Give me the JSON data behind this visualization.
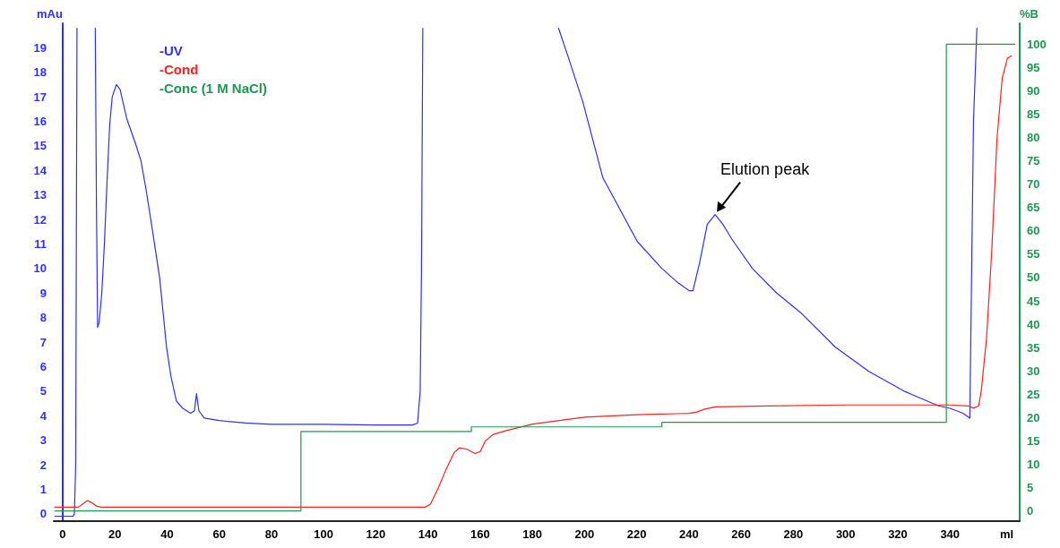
{
  "chart_data": {
    "type": "line",
    "ylabel": "mAu",
    "y2label": "%B",
    "xlabel": "ml",
    "xlim": [
      -3.4,
      366.7
    ],
    "xticks": [
      0,
      20,
      40,
      60,
      80,
      100,
      120,
      140,
      160,
      180,
      200,
      220,
      240,
      260,
      280,
      300,
      320,
      340
    ],
    "ylim": [
      -0.3,
      20
    ],
    "yticks": [
      0,
      1,
      2,
      3,
      4,
      5,
      6,
      7,
      8,
      9,
      10,
      11,
      12,
      13,
      14,
      15,
      16,
      17,
      18,
      19
    ],
    "y2lim": [
      -2.2,
      104.5
    ],
    "y2ticks": [
      0,
      5,
      10,
      15,
      20,
      25,
      30,
      35,
      40,
      45,
      50,
      55,
      60,
      65,
      70,
      75,
      80,
      85,
      90,
      95,
      100
    ],
    "grid": false,
    "legend": "top left",
    "line_style": "solid",
    "marker": "none",
    "annotations": [
      {
        "text": "Elution peak",
        "x": 250,
        "y": 12.2
      }
    ],
    "series": [
      {
        "name": "-UV",
        "color": "#3030f0",
        "x": [
          -3,
          4,
          4.5,
          5,
          5.5,
          9,
          12.5,
          13,
          13.4,
          14,
          15,
          16,
          17,
          18,
          19,
          20.6,
          22,
          24.6,
          27.9,
          30,
          32,
          34.5,
          37.2,
          39.8,
          41.5,
          43.6,
          46,
          49,
          50.5,
          51.3,
          52.2,
          54.3,
          60,
          70,
          80,
          100,
          120,
          134,
          136,
          137,
          137.5,
          138,
          160,
          190,
          193.8,
          199.3,
          207,
          220.2,
          229.6,
          236,
          240,
          241.5,
          244,
          247,
          250,
          253,
          256.4,
          264.3,
          273.6,
          282.8,
          296,
          309,
          322.4,
          335.6,
          340,
          345,
          347.6,
          349,
          350.3
        ],
        "values": [
          -0.1,
          -0.1,
          0,
          2,
          19.8,
          null,
          19.8,
          12,
          7.6,
          7.8,
          9,
          11,
          13.5,
          15.8,
          17,
          17.5,
          17.3,
          16.1,
          15.1,
          14.4,
          13.2,
          11.5,
          9.6,
          6.8,
          5.6,
          4.6,
          4.3,
          4.1,
          4.2,
          4.9,
          4.2,
          3.9,
          3.8,
          3.7,
          3.65,
          3.65,
          3.62,
          3.62,
          3.7,
          5,
          10,
          19.8,
          null,
          19.8,
          18.6,
          16.8,
          13.7,
          11.1,
          10.0,
          9.4,
          9.1,
          9.1,
          10.2,
          11.8,
          12.2,
          11.8,
          11.2,
          10.0,
          9.0,
          8.2,
          6.8,
          5.8,
          5.0,
          4.4,
          4.3,
          4.1,
          3.9,
          16,
          19.8
        ]
      },
      {
        "name": "-Cond",
        "color": "#ff2020",
        "axis": "y2",
        "x": [
          -3,
          6,
          8,
          9.5,
          11,
          13,
          15,
          139,
          141,
          144,
          147,
          150,
          152,
          155,
          158,
          160,
          162,
          165,
          170,
          180,
          200,
          220,
          240,
          243,
          246,
          250,
          270,
          300,
          340,
          347,
          349,
          351,
          352,
          354,
          356,
          358,
          360,
          362,
          363.5
        ],
        "values": [
          0.8,
          0.8,
          1.6,
          2.2,
          1.8,
          1,
          0.8,
          0.8,
          1.5,
          5,
          9,
          12.5,
          13.5,
          13.2,
          12.3,
          12.7,
          15,
          16.4,
          17.2,
          18.6,
          20.1,
          20.6,
          20.9,
          21.2,
          21.8,
          22.3,
          22.5,
          22.7,
          22.7,
          22.5,
          22,
          22.5,
          25.8,
          37,
          55.7,
          79.7,
          92.7,
          97,
          97.5
        ]
      },
      {
        "name": "-Conc (1 M NaCl)",
        "color": "#1a9a50",
        "axis": "y2",
        "type": "step",
        "x": [
          -3,
          91.3,
          156.6,
          229.6,
          338.6,
          364.8
        ],
        "values": [
          0,
          17,
          18,
          19,
          100,
          100
        ]
      }
    ]
  }
}
